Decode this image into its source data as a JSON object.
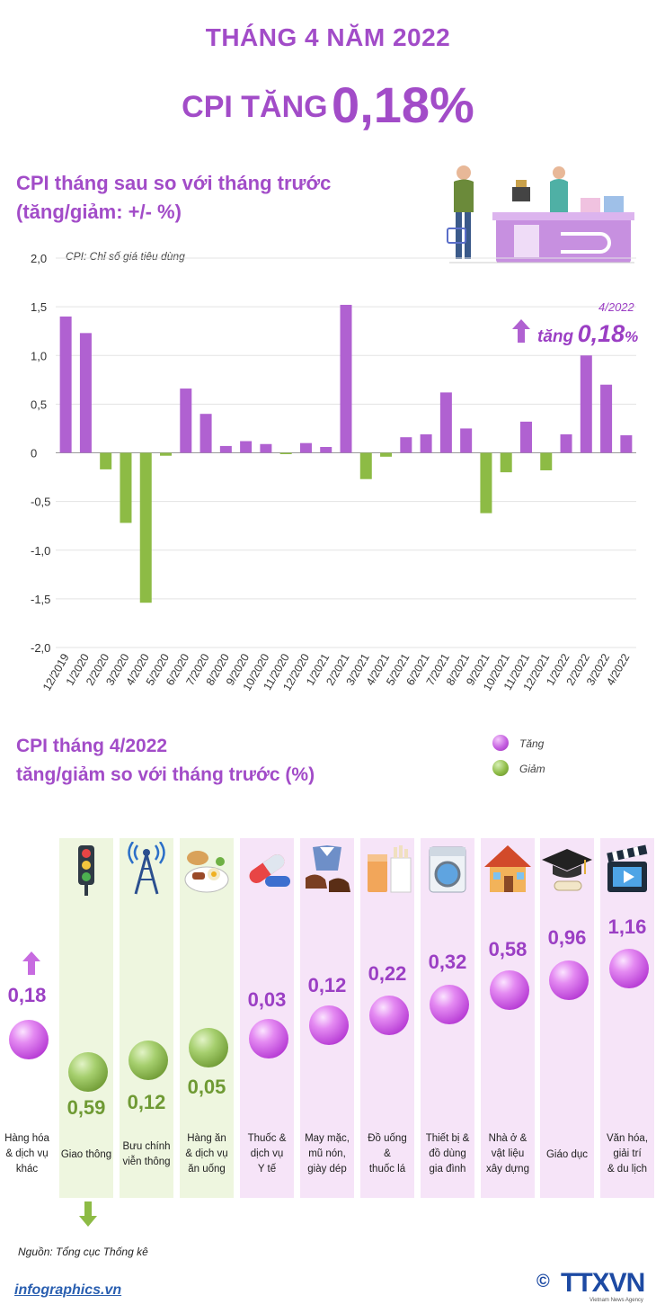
{
  "header": {
    "month": "THÁNG 4 NĂM 2022",
    "cpi_word": "CPI TĂNG",
    "cpi_value": "0,18%"
  },
  "section1": {
    "title_line1": "CPI tháng sau so với tháng trước",
    "title_line2": "(tăng/giảm: +/- %)",
    "note": "CPI: Chỉ số giá tiêu dùng",
    "callout_date": "4/2022",
    "callout_text": "tăng",
    "callout_value": "0,18",
    "callout_unit": "%"
  },
  "chart_data": [
    {
      "type": "bar",
      "categories": [
        "12/2019",
        "1/2020",
        "2/2020",
        "3/2020",
        "4/2020",
        "5/2020",
        "6/2020",
        "7/2020",
        "8/2020",
        "9/2020",
        "10/2020",
        "11/2020",
        "12/2020",
        "1/2021",
        "2/2021",
        "3/2021",
        "4/2021",
        "5/2021",
        "6/2021",
        "7/2021",
        "8/2021",
        "9/2021",
        "10/2021",
        "11/2021",
        "12/2021",
        "1/2022",
        "2/2022",
        "3/2022",
        "4/2022"
      ],
      "values": [
        1.4,
        1.23,
        -0.17,
        -0.72,
        -1.54,
        -0.03,
        0.66,
        0.4,
        0.07,
        0.12,
        0.09,
        -0.01,
        0.1,
        0.06,
        1.52,
        -0.27,
        -0.04,
        0.16,
        0.19,
        0.62,
        0.25,
        -0.62,
        -0.2,
        0.32,
        -0.18,
        0.19,
        1.0,
        0.7,
        0.18
      ],
      "ylim": [
        -2.0,
        2.0
      ],
      "yticks": [
        "2,0",
        "1,5",
        "1,0",
        "0,5",
        "0",
        "-0,5",
        "-1,0",
        "-1,5",
        "-2,0"
      ],
      "grid": true,
      "colors": {
        "increase": "#b061d1",
        "decrease": "#8dbb45"
      }
    },
    {
      "type": "bar",
      "categories": [
        "Hàng hóa & dịch vụ khác",
        "Giao thông",
        "Bưu chính viễn thông",
        "Hàng ăn & dịch vụ ăn uống",
        "Thuốc & dịch vụ Y tế",
        "May mặc, mũ nón, giày dép",
        "Đồ uống & thuốc lá",
        "Thiết bị & đồ dùng gia đình",
        "Nhà ở & vật liệu xây dựng",
        "Giáo dục",
        "Văn hóa, giải trí & du lịch"
      ],
      "values": [
        0.18,
        -0.59,
        -0.12,
        -0.05,
        0.03,
        0.12,
        0.22,
        0.32,
        0.58,
        0.96,
        1.16
      ],
      "value_labels": [
        "0,18",
        "0,59",
        "0,12",
        "0,05",
        "0,03",
        "0,12",
        "0,22",
        "0,32",
        "0,58",
        "0,96",
        "1,16"
      ],
      "directions": [
        "up",
        "down",
        "down",
        "down",
        "up",
        "up",
        "up",
        "up",
        "up",
        "up",
        "up"
      ],
      "icons": [
        "arrow-up-icon",
        "traffic-light-icon",
        "antenna-icon",
        "food-plate-icon",
        "pills-icon",
        "clothing-shoes-icon",
        "drinks-cigarettes-icon",
        "washing-machine-icon",
        "house-icon",
        "graduation-cap-icon",
        "film-icon"
      ],
      "legend": [
        {
          "label": "Tăng",
          "color": "#c45ee0"
        },
        {
          "label": "Giảm",
          "color": "#8dbb45"
        }
      ]
    }
  ],
  "section2": {
    "title_line1": "CPI tháng 4/2022",
    "title_line2": "tăng/giảm so với tháng trước (%)",
    "legend_up": "Tăng",
    "legend_down": "Giảm"
  },
  "categories": [
    {
      "label_lines": [
        "Hàng hóa",
        "& dịch vụ",
        "khác"
      ]
    },
    {
      "label_lines": [
        "Giao thông"
      ]
    },
    {
      "label_lines": [
        "Bưu chính",
        "viễn thông"
      ]
    },
    {
      "label_lines": [
        "Hàng ăn",
        "& dịch vụ",
        "ăn uống"
      ]
    },
    {
      "label_lines": [
        "Thuốc &",
        "dịch vụ",
        "Y tế"
      ]
    },
    {
      "label_lines": [
        "May mặc,",
        "mũ nón,",
        "giày dép"
      ]
    },
    {
      "label_lines": [
        "Đồ uống",
        "&",
        "thuốc lá"
      ]
    },
    {
      "label_lines": [
        "Thiết bị &",
        "đồ dùng",
        "gia đình"
      ]
    },
    {
      "label_lines": [
        "Nhà ở &",
        "vật liệu",
        "xây dựng"
      ]
    },
    {
      "label_lines": [
        "Giáo dục"
      ]
    },
    {
      "label_lines": [
        "Văn hóa,",
        "giải trí",
        "& du lịch"
      ]
    }
  ],
  "footer": {
    "source": "Nguồn: Tổng cục Thống kê",
    "site": "infographics.vn",
    "agency": "TTXVN",
    "agency_sub": "Vietnam News Agency",
    "copyright": "©"
  },
  "colors": {
    "title_purple": "#a24cc8",
    "bar_up": "#b061d1",
    "bar_down": "#8dbb45",
    "col_up_bg": "#f6e4f8",
    "col_down_bg": "#eef6df"
  }
}
